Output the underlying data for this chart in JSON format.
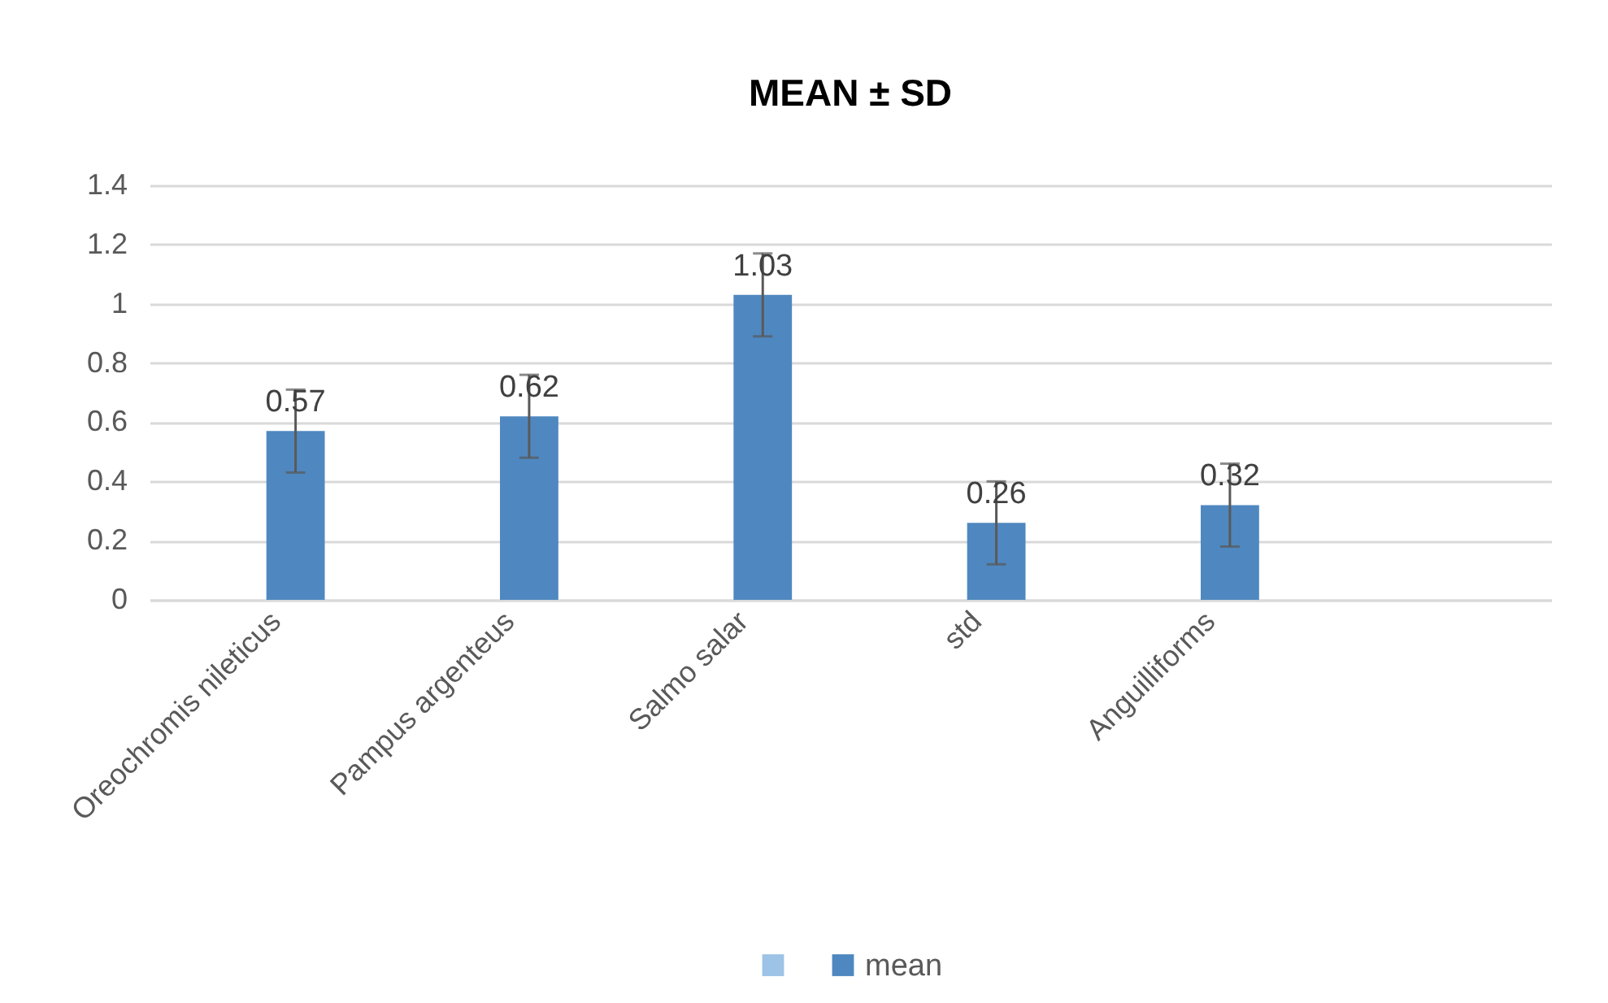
{
  "chart_data": {
    "type": "bar",
    "title": "MEAN ± SD",
    "categories": [
      "Oreochromis nileticus",
      "Pampus argenteus",
      "Salmo salar",
      "std",
      "Anguilliforms",
      null
    ],
    "series": [
      {
        "color": "#9dc3e6",
        "values": [
          null,
          null,
          null,
          null,
          null,
          null
        ]
      },
      {
        "name": "mean",
        "color": "#4f88c0",
        "values": [
          0.57,
          0.62,
          1.03,
          0.26,
          0.32,
          null
        ],
        "errors": [
          0.14,
          0.14,
          0.14,
          0.14,
          0.14,
          null
        ]
      }
    ],
    "data_labels": true,
    "ylim": [
      0,
      1.4
    ],
    "yticks": [
      0,
      0.2,
      0.4,
      0.6,
      0.8,
      1,
      1.2,
      1.4
    ],
    "grid": "y",
    "legend": "bottom"
  }
}
